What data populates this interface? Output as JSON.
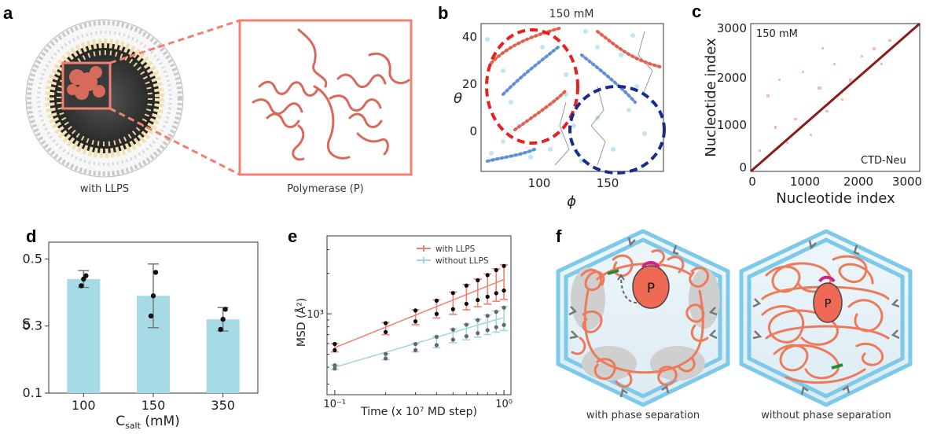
{
  "panels": {
    "a": {
      "letter": "a",
      "left_caption": "with LLPS",
      "right_caption": "Polymerase (P)",
      "colors": {
        "highlight": "#f08070",
        "polymerase": "#d86a5c",
        "rna": "#f3e0b3",
        "capsid": "#b0b0b0"
      }
    },
    "b": {
      "letter": "b",
      "title": "150 mM",
      "xlabel": "ϕ",
      "ylabel": "θ",
      "xticks": [
        "100",
        "150"
      ],
      "yticks": [
        "40",
        "20",
        "0"
      ]
    },
    "c": {
      "letter": "c",
      "inner_label": "150 mM",
      "corner_label": "CTD-Neu",
      "xlabel": "Nucleotide index",
      "ylabel": "Nucleotide index",
      "xticks": [
        "0",
        "1000",
        "2000",
        "3000"
      ],
      "yticks": [
        "3000",
        "2000",
        "1000",
        "0"
      ]
    },
    "d": {
      "letter": "d",
      "ylabel": "S",
      "xlabel_main": "C",
      "xlabel_sub": "salt",
      "xlabel_unit": " (mM)"
    },
    "e": {
      "letter": "e",
      "ylabel": "MSD (Å²)",
      "xlabel": "Time (x 10⁷ MD step)",
      "x_ticks": [
        "10⁻¹",
        "10⁰"
      ],
      "y_tick": "10³",
      "legend": [
        "with LLPS",
        "without LLPS"
      ]
    },
    "f": {
      "letter": "f",
      "left_caption": "with phase separation",
      "right_caption": "without phase separation",
      "p_label": "P",
      "p_label_right": "P"
    }
  },
  "chart_data": [
    {
      "type": "bar",
      "panel": "d",
      "categories": [
        "100",
        "150",
        "350"
      ],
      "values": [
        0.44,
        0.39,
        0.32
      ],
      "errors": [
        0.025,
        0.095,
        0.035
      ],
      "points": [
        [
          0.42,
          0.44,
          0.45
        ],
        [
          0.33,
          0.39,
          0.46
        ],
        [
          0.29,
          0.32,
          0.35
        ]
      ],
      "yticks": [
        "0.1",
        "0.3",
        "0.5"
      ],
      "ylim": [
        0.1,
        0.55
      ],
      "ylabel": "S",
      "xlabel": "Csalt (mM)",
      "bar_color": "#a6dbe6"
    },
    {
      "type": "line",
      "panel": "e",
      "x": [
        0.1,
        0.2,
        0.3,
        0.4,
        0.5,
        0.6,
        0.7,
        0.8,
        0.9,
        1.0
      ],
      "series": [
        {
          "name": "with LLPS",
          "color": "#f08070",
          "values": [
            560,
            780,
            950,
            1100,
            1220,
            1360,
            1470,
            1580,
            1700,
            1800
          ],
          "errors": [
            40,
            80,
            120,
            170,
            230,
            290,
            340,
            400,
            460,
            520
          ]
        },
        {
          "name": "without LLPS",
          "color": "#9fd6e0",
          "values": [
            400,
            480,
            560,
            620,
            690,
            740,
            790,
            840,
            890,
            940
          ],
          "errors": [
            15,
            25,
            40,
            60,
            80,
            100,
            120,
            140,
            160,
            190
          ]
        }
      ],
      "xscale": "log",
      "yscale": "log",
      "xlim": [
        0.09,
        1.1
      ],
      "ylim": [
        250,
        3800
      ],
      "xlabel": "Time (x 10⁷ MD step)",
      "ylabel": "MSD (Å²)"
    }
  ]
}
